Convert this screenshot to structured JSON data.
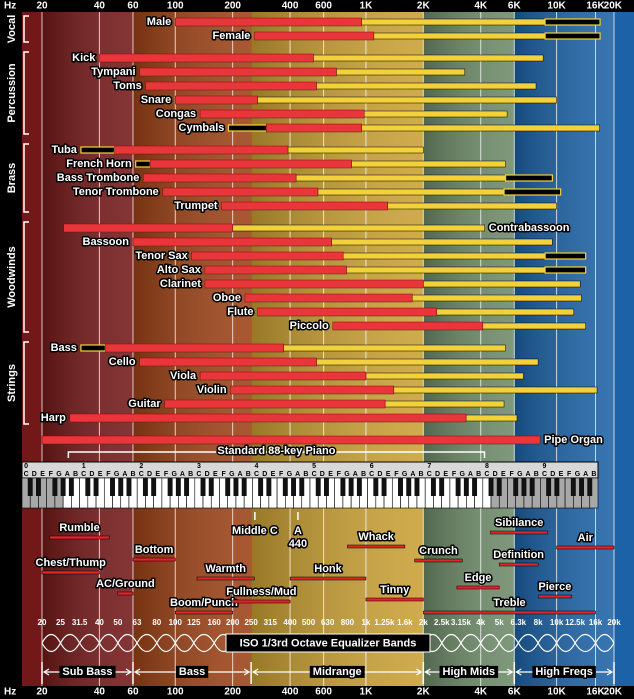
{
  "chart_data": {
    "type": "range",
    "x_label": "Hz",
    "xscale": "log",
    "xlim": [
      20,
      20000
    ],
    "xticks": [
      20,
      40,
      60,
      100,
      200,
      400,
      600,
      {
        "value": 1000,
        "label": "1K"
      },
      {
        "value": 2000,
        "label": "2K"
      },
      {
        "value": 4000,
        "label": "4K"
      },
      {
        "value": 6000,
        "label": "6K"
      },
      {
        "value": 10000,
        "label": "10K"
      },
      {
        "value": 16000,
        "label": "16K"
      },
      {
        "value": 20000,
        "label": "20K"
      }
    ],
    "grid": true,
    "colors": {
      "fundamental": "#e8363a",
      "harmonics": "#f2d13a",
      "extended": "#000000"
    },
    "groups": [
      {
        "name": "Vocal",
        "instruments": [
          {
            "name": "Male",
            "fundamental": [
              100,
              950
            ],
            "harmonics": 8700,
            "extended": [
              8700,
              16900
            ]
          },
          {
            "name": "Female",
            "fundamental": [
              260,
              1100
            ],
            "harmonics": 8700,
            "extended": [
              8700,
              16900
            ]
          }
        ]
      },
      {
        "name": "Percussion",
        "instruments": [
          {
            "name": "Kick",
            "fundamental": [
              40,
              530
            ],
            "harmonics": 8500
          },
          {
            "name": "Tympani",
            "fundamental": [
              65,
              700
            ],
            "harmonics": 3300
          },
          {
            "name": "Toms",
            "fundamental": [
              70,
              550
            ],
            "harmonics": 7800
          },
          {
            "name": "Snare",
            "fundamental": [
              100,
              270
            ],
            "harmonics": 10000
          },
          {
            "name": "Congas",
            "fundamental": [
              135,
              980
            ],
            "harmonics": 5500
          },
          {
            "name": "Cymbals",
            "fundamental": [
              300,
              950
            ],
            "harmonics": 16800,
            "extended": [
              190,
              320
            ]
          }
        ]
      },
      {
        "name": "Brass",
        "instruments": [
          {
            "name": "Tuba",
            "fundamental": [
              48,
              390
            ],
            "harmonics": 2000,
            "extended": [
              32,
              48
            ]
          },
          {
            "name": "French Horn",
            "fundamental": [
              74,
              840
            ],
            "harmonics": 5400,
            "extended": [
              62,
              74
            ]
          },
          {
            "name": "Bass Trombone",
            "fundamental": [
              68,
              430
            ],
            "harmonics": 5400,
            "extended": [
              5400,
              9500
            ]
          },
          {
            "name": "Tenor Trombone",
            "fundamental": [
              86,
              560
            ],
            "harmonics": 5300,
            "extended": [
              5300,
              10500
            ]
          },
          {
            "name": "Trumpet",
            "fundamental": [
              175,
              1300
            ],
            "harmonics": 10000
          }
        ]
      },
      {
        "name": "Woodwinds",
        "instruments": [
          {
            "name": "Contrabassoon",
            "fundamental": [
              26,
              200
            ],
            "harmonics": 4200
          },
          {
            "name": "Bassoon",
            "fundamental": [
              60,
              660
            ],
            "harmonics": 9500
          },
          {
            "name": "Tenor Sax",
            "fundamental": [
              122,
              760
            ],
            "harmonics": 8700,
            "extended": [
              8700,
              14200
            ]
          },
          {
            "name": "Alto Sax",
            "fundamental": [
              143,
              790
            ],
            "harmonics": 8700,
            "extended": [
              8700,
              14200
            ]
          },
          {
            "name": "Clarinet",
            "fundamental": [
              143,
              2000
            ],
            "harmonics": 13300
          },
          {
            "name": "Oboe",
            "fundamental": [
              232,
              1750
            ],
            "harmonics": 13500
          },
          {
            "name": "Flute",
            "fundamental": [
              270,
              2350
            ],
            "harmonics": 12300
          },
          {
            "name": "Piccolo",
            "fundamental": [
              670,
              4100
            ],
            "harmonics": 14200
          }
        ]
      },
      {
        "name": "Strings",
        "instruments": [
          {
            "name": "Bass",
            "fundamental": [
              43,
              370
            ],
            "harmonics": 5400,
            "extended": [
              32,
              43
            ]
          },
          {
            "name": "Cello",
            "fundamental": [
              65,
              550
            ],
            "harmonics": 8000
          },
          {
            "name": "Viola",
            "fundamental": [
              135,
              1000
            ],
            "harmonics": 6700
          },
          {
            "name": "Violin",
            "fundamental": [
              195,
              1400
            ],
            "harmonics": 16300
          },
          {
            "name": "Guitar",
            "fundamental": [
              88,
              1260
            ],
            "harmonics": 5300
          },
          {
            "name": "Harp",
            "fundamental": [
              28,
              3350
            ],
            "harmonics": 6200
          }
        ]
      },
      {
        "name": null,
        "instruments": [
          {
            "name": "Pipe Organ",
            "fundamental": [
              20,
              8200
            ]
          }
        ]
      }
    ],
    "piano": {
      "label": "Standard 88-key Piano",
      "range": [
        27.5,
        4186
      ]
    },
    "keyboard": {
      "octaves": [
        0,
        1,
        2,
        3,
        4,
        5,
        6,
        7,
        8,
        9
      ],
      "note_names": [
        "C",
        "D",
        "E",
        "F",
        "G",
        "A",
        "B"
      ]
    },
    "markers": [
      {
        "label": "Middle C",
        "value": 261.6
      },
      {
        "label": "A",
        "value": 440
      }
    ],
    "descriptors": [
      {
        "label": "Rumble",
        "range": [
          22,
          45
        ]
      },
      {
        "label": "Chest/Thump",
        "range": [
          20,
          40
        ]
      },
      {
        "label": "Bottom",
        "range": [
          60,
          100
        ]
      },
      {
        "label": "AC/Ground",
        "range": [
          50,
          60
        ]
      },
      {
        "label": "Boom/Punch",
        "range": [
          100,
          200
        ]
      },
      {
        "label": "Warmth",
        "range": [
          130,
          260
        ]
      },
      {
        "label": "Fullness/Mud",
        "range": [
          200,
          400
        ]
      },
      {
        "label": "Honk",
        "range": [
          400,
          1000
        ]
      },
      {
        "label": "Whack",
        "range": [
          800,
          1600
        ]
      },
      {
        "label": "Tinny",
        "range": [
          1000,
          2000
        ]
      },
      {
        "label": "Crunch",
        "range": [
          1800,
          3200
        ]
      },
      {
        "label": "Edge",
        "range": [
          3000,
          5000
        ]
      },
      {
        "label": "Sibilance",
        "range": [
          4500,
          9000
        ]
      },
      {
        "label": "Definition",
        "range": [
          5000,
          8000
        ]
      },
      {
        "label": "Pierce",
        "range": [
          8000,
          12000
        ]
      },
      {
        "label": "Treble",
        "range": [
          2000,
          16000
        ]
      },
      {
        "label": "Air",
        "range": [
          10000,
          20000
        ]
      }
    ],
    "iso_bands": {
      "title": "ISO 1/3rd Octave Equalizer Bands",
      "ticks": [
        20,
        25,
        31.5,
        40,
        50,
        63,
        80,
        100,
        125,
        160,
        200,
        250,
        315,
        400,
        500,
        630,
        800,
        {
          "value": 1000,
          "label": "1k"
        },
        {
          "value": 1250,
          "label": "1.25k"
        },
        {
          "value": 1600,
          "label": "1.6k"
        },
        {
          "value": 2000,
          "label": "2k"
        },
        {
          "value": 2500,
          "label": "2.5k"
        },
        {
          "value": 3150,
          "label": "3.15k"
        },
        {
          "value": 4000,
          "label": "4k"
        },
        {
          "value": 5000,
          "label": "5k"
        },
        {
          "value": 6300,
          "label": "6.3k"
        },
        {
          "value": 8000,
          "label": "8k"
        },
        {
          "value": 10000,
          "label": "10k"
        },
        {
          "value": 12500,
          "label": "12.5k"
        },
        {
          "value": 16000,
          "label": "16k"
        },
        {
          "value": 20000,
          "label": "20k"
        }
      ]
    },
    "sections": [
      {
        "name": "Sub Bass",
        "range": [
          20,
          60
        ],
        "color": "#731818"
      },
      {
        "name": "Bass",
        "range": [
          60,
          250
        ],
        "color": "#9c4216"
      },
      {
        "name": "Midrange",
        "range": [
          250,
          2000
        ],
        "color": "#c9a034"
      },
      {
        "name": "High Mids",
        "range": [
          2000,
          6000
        ],
        "color": "#6d8a68"
      },
      {
        "name": "High Freqs",
        "range": [
          6000,
          20000
        ],
        "color": "#1c62a6"
      }
    ]
  }
}
